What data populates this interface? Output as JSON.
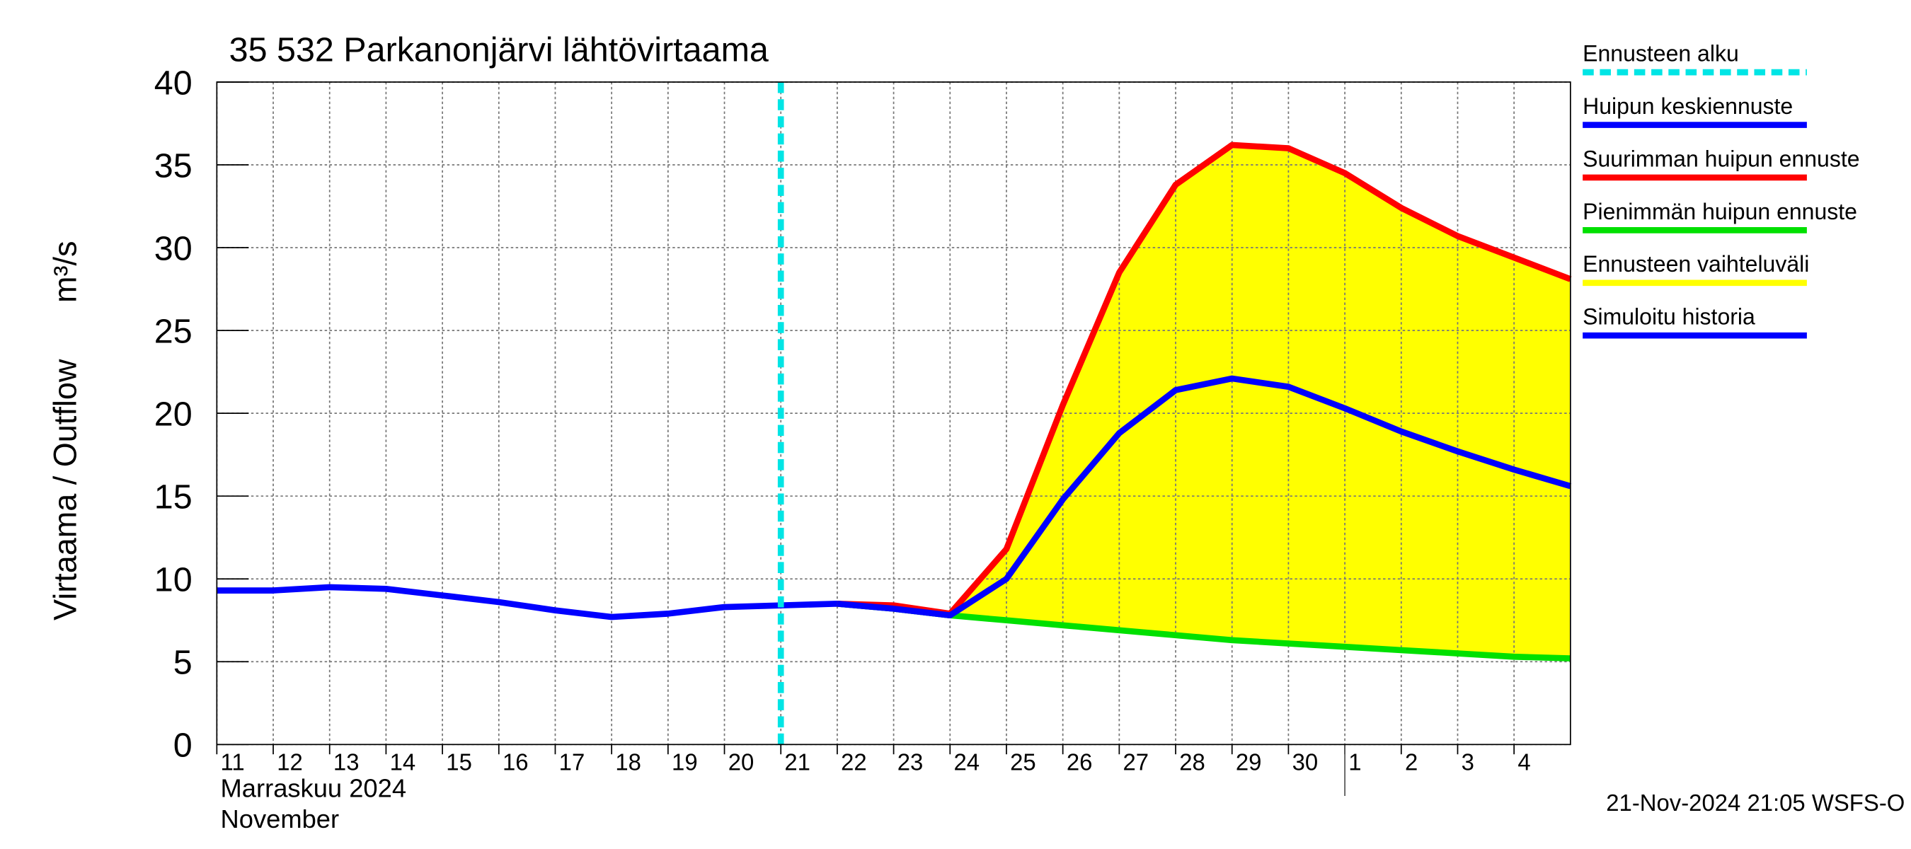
{
  "chart_data": {
    "type": "line",
    "title": "35 532 Parkanonjärvi lähtövirtaama",
    "ylabel": "Virtaama / Outflow",
    "yunit": "m³/s",
    "xlabel_fi": "Marraskuu 2024",
    "xlabel_en": "November",
    "footer": "21-Nov-2024 21:05 WSFS-O",
    "x": [
      "2024-11-11",
      "2024-11-12",
      "2024-11-13",
      "2024-11-14",
      "2024-11-15",
      "2024-11-16",
      "2024-11-17",
      "2024-11-18",
      "2024-11-19",
      "2024-11-20",
      "2024-11-21",
      "2024-11-22",
      "2024-11-23",
      "2024-11-24",
      "2024-11-25",
      "2024-11-26",
      "2024-11-27",
      "2024-11-28",
      "2024-11-29",
      "2024-11-30",
      "2024-12-01",
      "2024-12-02",
      "2024-12-03",
      "2024-12-04",
      "2024-12-05"
    ],
    "xlim": [
      "2024-11-11",
      "2024-12-05"
    ],
    "xticks": [
      {
        "value": "2024-11-11",
        "label": "11"
      },
      {
        "value": "2024-11-12",
        "label": "12"
      },
      {
        "value": "2024-11-13",
        "label": "13"
      },
      {
        "value": "2024-11-14",
        "label": "14"
      },
      {
        "value": "2024-11-15",
        "label": "15"
      },
      {
        "value": "2024-11-16",
        "label": "16"
      },
      {
        "value": "2024-11-17",
        "label": "17"
      },
      {
        "value": "2024-11-18",
        "label": "18"
      },
      {
        "value": "2024-11-19",
        "label": "19"
      },
      {
        "value": "2024-11-20",
        "label": "20"
      },
      {
        "value": "2024-11-21",
        "label": "21"
      },
      {
        "value": "2024-11-22",
        "label": "22"
      },
      {
        "value": "2024-11-23",
        "label": "23"
      },
      {
        "value": "2024-11-24",
        "label": "24"
      },
      {
        "value": "2024-11-25",
        "label": "25"
      },
      {
        "value": "2024-11-26",
        "label": "26"
      },
      {
        "value": "2024-11-27",
        "label": "27"
      },
      {
        "value": "2024-11-28",
        "label": "28"
      },
      {
        "value": "2024-11-29",
        "label": "29"
      },
      {
        "value": "2024-11-30",
        "label": "30"
      },
      {
        "value": "2024-12-01",
        "label": "1"
      },
      {
        "value": "2024-12-02",
        "label": "2"
      },
      {
        "value": "2024-12-03",
        "label": "3"
      },
      {
        "value": "2024-12-04",
        "label": "4"
      }
    ],
    "month_boundary": "2024-12-01",
    "ylim": [
      0,
      40
    ],
    "yticks": [
      0,
      5,
      10,
      15,
      20,
      25,
      30,
      35,
      40
    ],
    "grid": true,
    "legend": "right",
    "series": [
      {
        "name": "Ennusteen alku",
        "kind": "vline",
        "color": "#00e5e5",
        "x": "2024-11-21"
      },
      {
        "name": "Huipun keskiennuste",
        "kind": "line",
        "color": "#0000ff",
        "values": [
          null,
          null,
          null,
          null,
          null,
          null,
          null,
          null,
          null,
          null,
          null,
          8.5,
          8.2,
          7.8,
          10.0,
          14.8,
          18.8,
          21.4,
          22.1,
          21.6,
          20.3,
          18.9,
          17.7,
          16.6,
          15.6
        ]
      },
      {
        "name": "Suurimman huipun ennuste",
        "kind": "line",
        "color": "#ff0000",
        "values": [
          null,
          null,
          null,
          null,
          null,
          null,
          null,
          null,
          null,
          null,
          null,
          8.5,
          8.4,
          7.9,
          11.8,
          20.5,
          28.5,
          33.8,
          36.2,
          36.0,
          34.5,
          32.4,
          30.7,
          29.4,
          28.1
        ]
      },
      {
        "name": "Pienimmän huipun ennuste",
        "kind": "line",
        "color": "#00e000",
        "values": [
          null,
          null,
          null,
          null,
          null,
          null,
          null,
          null,
          null,
          null,
          null,
          8.5,
          8.2,
          7.8,
          7.5,
          7.2,
          6.9,
          6.6,
          6.3,
          6.1,
          5.9,
          5.7,
          5.5,
          5.3,
          5.2
        ]
      },
      {
        "name": "Ennusteen vaihteluväli",
        "kind": "band",
        "color": "#ffff00",
        "between": [
          2,
          3
        ]
      },
      {
        "name": "Simuloitu historia",
        "kind": "line",
        "color": "#0000ff",
        "values": [
          9.3,
          9.3,
          9.5,
          9.4,
          9.0,
          8.6,
          8.1,
          7.7,
          7.9,
          8.3,
          8.4,
          8.5,
          8.2,
          7.8,
          null,
          null,
          null,
          null,
          null,
          null,
          null,
          null,
          null,
          null,
          null
        ]
      }
    ]
  }
}
